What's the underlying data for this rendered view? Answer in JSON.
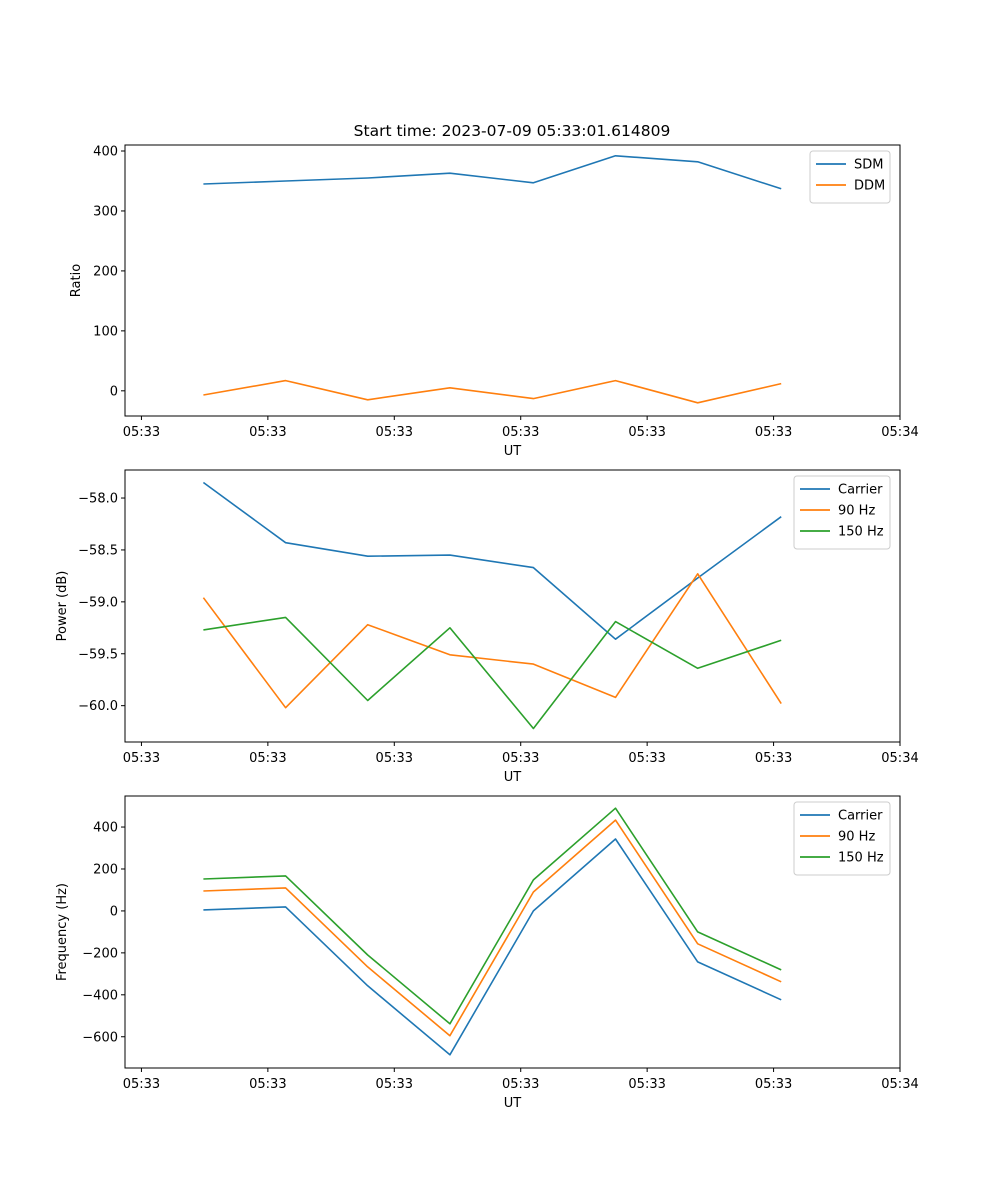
{
  "figure_title": "Start time: 2023-07-09 05:33:01.614809",
  "colors": {
    "blue": "#1f77b4",
    "orange": "#ff7f0e",
    "green": "#2ca02c"
  },
  "chart_data": [
    {
      "type": "line",
      "title": "Start time: 2023-07-09 05:33:01.614809",
      "xlabel": "UT",
      "ylabel": "Ratio",
      "x_tick_labels": [
        "05:33",
        "05:33",
        "05:33",
        "05:33",
        "05:33",
        "05:33",
        "05:34"
      ],
      "x_tick_positions": [
        0,
        1,
        2,
        3,
        4,
        5,
        6
      ],
      "x": [
        0.49,
        1.14,
        1.79,
        2.44,
        3.1,
        3.75,
        4.4,
        5.06
      ],
      "xlim": [
        -0.13,
        6.0
      ],
      "yticks": [
        0,
        100,
        200,
        300,
        400
      ],
      "ylim": [
        -42,
        410
      ],
      "legend": "top-right",
      "series": [
        {
          "name": "SDM",
          "color": "#1f77b4",
          "values": [
            345,
            350,
            355,
            363,
            347,
            392,
            382,
            337
          ]
        },
        {
          "name": "DDM",
          "color": "#ff7f0e",
          "values": [
            -7,
            17,
            -15,
            5,
            -13,
            17,
            -20,
            12
          ]
        }
      ]
    },
    {
      "type": "line",
      "title": "",
      "xlabel": "UT",
      "ylabel": "Power (dB)",
      "x_tick_labels": [
        "05:33",
        "05:33",
        "05:33",
        "05:33",
        "05:33",
        "05:33",
        "05:34"
      ],
      "x_tick_positions": [
        0,
        1,
        2,
        3,
        4,
        5,
        6
      ],
      "x": [
        0.49,
        1.14,
        1.79,
        2.44,
        3.1,
        3.75,
        4.4,
        5.06
      ],
      "xlim": [
        -0.13,
        6.0
      ],
      "yticks": [
        -60.0,
        -59.5,
        -59.0,
        -58.5,
        -58.0
      ],
      "ytick_labels": [
        "−60.0",
        "−59.5",
        "−59.0",
        "−58.5",
        "−58.0"
      ],
      "ylim": [
        -60.35,
        -57.73
      ],
      "legend": "top-right",
      "series": [
        {
          "name": "Carrier",
          "color": "#1f77b4",
          "values": [
            -57.85,
            -58.43,
            -58.56,
            -58.55,
            -58.67,
            -59.36,
            -58.77,
            -58.18
          ]
        },
        {
          "name": "90 Hz",
          "color": "#ff7f0e",
          "values": [
            -58.96,
            -60.02,
            -59.22,
            -59.51,
            -59.6,
            -59.92,
            -58.73,
            -59.98
          ]
        },
        {
          "name": "150 Hz",
          "color": "#2ca02c",
          "values": [
            -59.27,
            -59.15,
            -59.95,
            -59.25,
            -60.22,
            -59.19,
            -59.64,
            -59.37
          ]
        }
      ]
    },
    {
      "type": "line",
      "title": "",
      "xlabel": "UT",
      "ylabel": "Frequency (Hz)",
      "x_tick_labels": [
        "05:33",
        "05:33",
        "05:33",
        "05:33",
        "05:33",
        "05:33",
        "05:34"
      ],
      "x_tick_positions": [
        0,
        1,
        2,
        3,
        4,
        5,
        6
      ],
      "x": [
        0.49,
        1.14,
        1.79,
        2.44,
        3.1,
        3.75,
        4.4,
        5.06
      ],
      "xlim": [
        -0.13,
        6.0
      ],
      "yticks": [
        -600,
        -400,
        -200,
        0,
        200,
        400
      ],
      "ytick_labels": [
        "−600",
        "−400",
        "−200",
        "0",
        "200",
        "400"
      ],
      "ylim": [
        -749,
        548
      ],
      "legend": "top-right",
      "series": [
        {
          "name": "Carrier",
          "color": "#1f77b4",
          "values": [
            5,
            19,
            -357,
            -686,
            0,
            343,
            -243,
            -424
          ]
        },
        {
          "name": "90 Hz",
          "color": "#ff7f0e",
          "values": [
            95,
            110,
            -267,
            -595,
            90,
            433,
            -157,
            -338
          ]
        },
        {
          "name": "150 Hz",
          "color": "#2ca02c",
          "values": [
            152,
            167,
            -210,
            -538,
            148,
            490,
            -100,
            -281
          ]
        }
      ]
    }
  ]
}
